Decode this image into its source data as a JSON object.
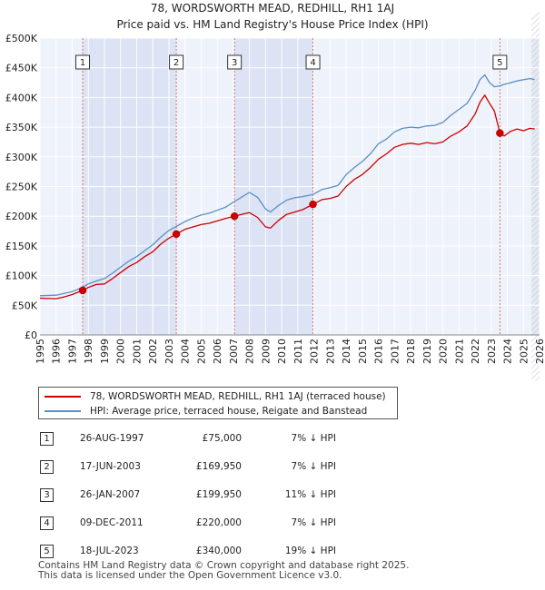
{
  "chart_data": {
    "type": "line",
    "title": "78, WORDSWORTH MEAD, REDHILL, RH1 1AJ",
    "subtitle": "Price paid vs. HM Land Registry's House Price Index (HPI)",
    "xlabel": "",
    "ylabel": "",
    "xlim": [
      1995,
      2026
    ],
    "ylim": [
      0,
      500000
    ],
    "grid": true,
    "x_ticks": [
      1995,
      1996,
      1997,
      1998,
      1999,
      2000,
      2001,
      2002,
      2003,
      2004,
      2005,
      2006,
      2007,
      2008,
      2009,
      2010,
      2011,
      2012,
      2013,
      2014,
      2015,
      2016,
      2017,
      2018,
      2019,
      2020,
      2021,
      2022,
      2023,
      2024,
      2025,
      2026
    ],
    "y_ticks": [
      0,
      50000,
      100000,
      150000,
      200000,
      250000,
      300000,
      350000,
      400000,
      450000,
      500000
    ],
    "y_tick_labels": [
      "£0",
      "£50K",
      "£100K",
      "£150K",
      "£200K",
      "£250K",
      "£300K",
      "£350K",
      "£400K",
      "£450K",
      "£500K"
    ],
    "series": [
      {
        "name": "78, WORDSWORTH MEAD, REDHILL, RH1 1AJ (terraced house)",
        "color": "#cc0000",
        "x": [
          1995.0,
          1996.0,
          1996.5,
          1997.0,
          1997.65,
          1998.0,
          1998.5,
          1999.0,
          1999.5,
          2000.0,
          2000.5,
          2001.0,
          2001.5,
          2002.0,
          2002.5,
          2003.0,
          2003.46,
          2004.0,
          2004.5,
          2005.0,
          2005.5,
          2006.0,
          2006.5,
          2007.07,
          2007.5,
          2008.0,
          2008.5,
          2009.0,
          2009.3,
          2009.8,
          2010.3,
          2010.8,
          2011.3,
          2011.94,
          2012.5,
          2013.0,
          2013.5,
          2014.0,
          2014.5,
          2015.0,
          2015.5,
          2016.0,
          2016.5,
          2017.0,
          2017.5,
          2018.0,
          2018.5,
          2019.0,
          2019.5,
          2020.0,
          2020.5,
          2021.0,
          2021.5,
          2022.0,
          2022.3,
          2022.6,
          2022.9,
          2023.2,
          2023.54,
          2023.8,
          2024.2,
          2024.6,
          2025.0,
          2025.4,
          2025.7
        ],
        "y": [
          62000,
          61000,
          64000,
          68000,
          75000,
          80000,
          85000,
          86000,
          95000,
          105000,
          115000,
          122000,
          132000,
          140000,
          153000,
          163000,
          169950,
          178000,
          182000,
          186000,
          188000,
          192000,
          196000,
          199950,
          203000,
          206000,
          198000,
          182000,
          180000,
          193000,
          203000,
          207000,
          211000,
          220000,
          228000,
          230000,
          234000,
          250000,
          262000,
          270000,
          282000,
          296000,
          305000,
          316000,
          321000,
          323000,
          321000,
          324000,
          322000,
          325000,
          335000,
          342000,
          352000,
          372000,
          392000,
          404000,
          390000,
          377000,
          340000,
          335000,
          343000,
          347000,
          344000,
          348000,
          347000
        ]
      },
      {
        "name": "HPI: Average price, terraced house, Reigate and Banstead",
        "color": "#5b8fc4",
        "x": [
          1995.0,
          1996.0,
          1997.0,
          1997.65,
          1998.0,
          1998.5,
          1999.0,
          1999.5,
          2000.0,
          2000.5,
          2001.0,
          2001.5,
          2002.0,
          2002.5,
          2003.0,
          2003.46,
          2004.0,
          2004.5,
          2005.0,
          2005.5,
          2006.0,
          2006.5,
          2007.07,
          2007.5,
          2008.0,
          2008.5,
          2009.0,
          2009.3,
          2009.8,
          2010.3,
          2010.8,
          2011.3,
          2011.94,
          2012.5,
          2013.0,
          2013.5,
          2014.0,
          2014.5,
          2015.0,
          2015.5,
          2016.0,
          2016.5,
          2017.0,
          2017.5,
          2018.0,
          2018.5,
          2019.0,
          2019.5,
          2020.0,
          2020.5,
          2021.0,
          2021.5,
          2022.0,
          2022.3,
          2022.6,
          2022.9,
          2023.2,
          2023.54,
          2023.8,
          2024.2,
          2024.6,
          2025.0,
          2025.4,
          2025.7
        ],
        "y": [
          66000,
          67000,
          73000,
          80500,
          86000,
          91000,
          95000,
          104000,
          114000,
          124000,
          132000,
          142000,
          152000,
          165000,
          176000,
          182700,
          191000,
          197000,
          202000,
          205000,
          210000,
          215000,
          224700,
          232000,
          240000,
          232000,
          212000,
          207000,
          218000,
          227000,
          231000,
          233000,
          236500,
          245000,
          248000,
          252000,
          270000,
          282000,
          292000,
          305000,
          322000,
          330000,
          342000,
          348000,
          350000,
          349000,
          352000,
          353000,
          358000,
          370000,
          380000,
          390000,
          412000,
          430000,
          438000,
          425000,
          418000,
          419700,
          422000,
          425000,
          428000,
          430000,
          432000,
          430000
        ]
      }
    ],
    "annotations": [
      {
        "label": "1",
        "x": 1997.65,
        "y": 75000
      },
      {
        "label": "2",
        "x": 2003.46,
        "y": 169950
      },
      {
        "label": "3",
        "x": 2007.07,
        "y": 199950
      },
      {
        "label": "4",
        "x": 2011.94,
        "y": 220000
      },
      {
        "label": "5",
        "x": 2023.54,
        "y": 340000
      }
    ]
  },
  "legend": {
    "items": [
      {
        "label": "78, WORDSWORTH MEAD, REDHILL, RH1 1AJ (terraced house)",
        "color": "#cc0000"
      },
      {
        "label": "HPI: Average price, terraced house, Reigate and Banstead",
        "color": "#5b8fc4"
      }
    ]
  },
  "sales": [
    {
      "num": "1",
      "date": "26-AUG-1997",
      "price": "£75,000",
      "hpi": "7% ↓ HPI"
    },
    {
      "num": "2",
      "date": "17-JUN-2003",
      "price": "£169,950",
      "hpi": "7% ↓ HPI"
    },
    {
      "num": "3",
      "date": "26-JAN-2007",
      "price": "£199,950",
      "hpi": "11% ↓ HPI"
    },
    {
      "num": "4",
      "date": "09-DEC-2011",
      "price": "£220,000",
      "hpi": "7% ↓ HPI"
    },
    {
      "num": "5",
      "date": "18-JUL-2023",
      "price": "£340,000",
      "hpi": "19% ↓ HPI"
    }
  ],
  "footer": {
    "line1": "Contains HM Land Registry data © Crown copyright and database right 2025.",
    "line2": "This data is licensed under the Open Government Licence v3.0."
  }
}
